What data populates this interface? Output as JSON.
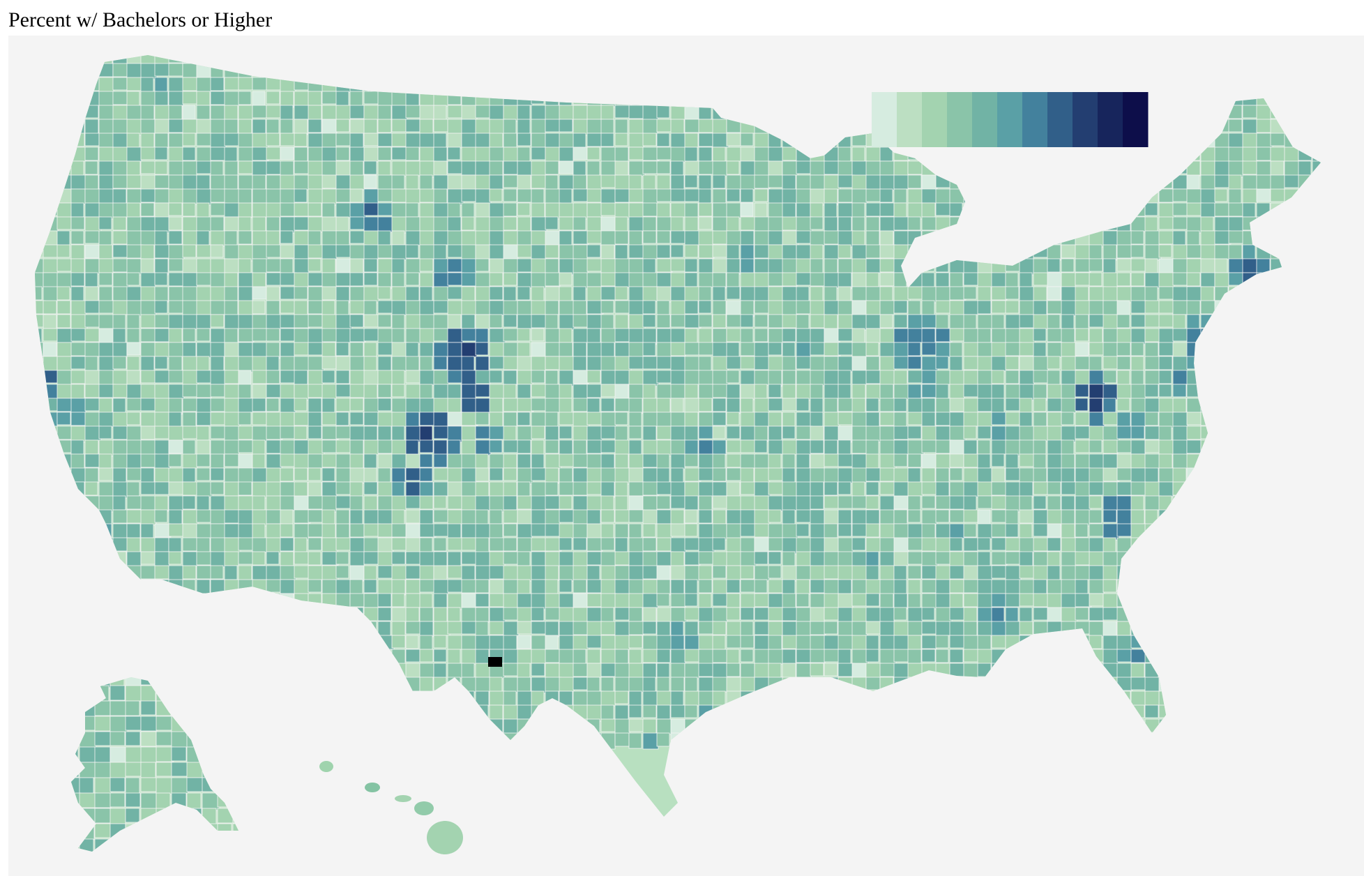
{
  "title": "Percent w/ Bachelors or Higher",
  "map": {
    "region": "United States counties",
    "projection": "albers-usa",
    "background_color": "#f4f4f4",
    "border_color": "#f4f4f4",
    "highlight_color": "#000000"
  },
  "legend": {
    "placement": "top-right",
    "swatch_count": 11,
    "labels": [],
    "colors": [
      "#d6ece0",
      "#bcdfc2",
      "#a3d3b0",
      "#8ac4a9",
      "#71b3a5",
      "#5aa0a6",
      "#43819d",
      "#315f89",
      "#233e71",
      "#17255c",
      "#0d0e4a"
    ]
  }
}
